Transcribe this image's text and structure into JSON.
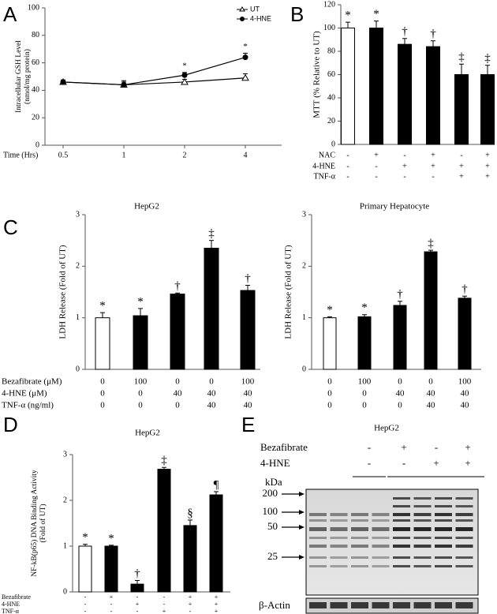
{
  "chart_data": [
    {
      "type": "line",
      "panel": "A",
      "ylabel": [
        "Intracellular GSH Level",
        "(nmol/mg protein)"
      ],
      "xlabel": "Time (Hrs)",
      "categories": [
        "0.5",
        "1",
        "2",
        "4"
      ],
      "ylim": [
        0,
        100
      ],
      "yticks": [
        0,
        20,
        40,
        60,
        80,
        100
      ],
      "series": [
        {
          "name": "UT",
          "color": "#000000",
          "marker": "open-triangle",
          "values": [
            46,
            44,
            46,
            49
          ],
          "errors": [
            1.5,
            3,
            2,
            3
          ],
          "annotations": [
            null,
            null,
            null,
            null
          ]
        },
        {
          "name": "4-HNE",
          "color": "#000000",
          "marker": "filled-circle",
          "values": [
            46,
            44,
            51,
            64
          ],
          "errors": [
            1.5,
            2,
            2,
            3
          ],
          "annotations": [
            null,
            null,
            "*",
            "*"
          ]
        }
      ]
    },
    {
      "type": "bar",
      "panel": "B",
      "ylabel": "MTT (%  Relative to UT)",
      "ylim": [
        0,
        120
      ],
      "yticks": [
        0,
        20,
        40,
        60,
        80,
        100,
        120
      ],
      "values": [
        100,
        100,
        86,
        84,
        60,
        60
      ],
      "errors": [
        5,
        6,
        5,
        5,
        9,
        8
      ],
      "annotations": [
        "*",
        "*",
        "†",
        "†",
        "‡",
        "‡"
      ],
      "colors": [
        "#ffffff",
        "#000000",
        "#000000",
        "#000000",
        "#000000",
        "#000000"
      ],
      "conditions": [
        {
          "name": "NAC",
          "values": [
            "-",
            "+",
            "-",
            "+",
            "-",
            "+"
          ]
        },
        {
          "name": "4-HNE",
          "values": [
            "-",
            "-",
            "+",
            "+",
            "+",
            "+"
          ]
        },
        {
          "name": "TNF-α",
          "values": [
            "-",
            "-",
            "-",
            "-",
            "+",
            "+"
          ]
        }
      ]
    },
    {
      "type": "bar",
      "panel": "C",
      "title": "HepG2",
      "ylabel": "LDH Release (Fold of UT)",
      "ylim": [
        0,
        3
      ],
      "yticks": [
        0,
        1,
        2,
        3
      ],
      "values": [
        1.0,
        1.04,
        1.46,
        2.35,
        1.53
      ],
      "errors": [
        0.1,
        0.14,
        0.02,
        0.15,
        0.1
      ],
      "annotations": [
        "*",
        "*",
        "†",
        "‡",
        "†"
      ],
      "colors": [
        "#ffffff",
        "#000000",
        "#000000",
        "#000000",
        "#000000"
      ],
      "conditions": [
        {
          "name": "Bezafibrate (μM)",
          "values": [
            "0",
            "100",
            "0",
            "0",
            "100"
          ]
        },
        {
          "name": "4-HNE (μM)",
          "values": [
            "0",
            "0",
            "40",
            "40",
            "40"
          ]
        },
        {
          "name": "TNF-α (ng/ml)",
          "values": [
            "0",
            "0",
            "0",
            "40",
            "40"
          ]
        }
      ]
    },
    {
      "type": "bar",
      "title": "Primary Hepatocyte",
      "ylabel": "LDH Release (Fold of UT)",
      "ylim": [
        0,
        3
      ],
      "yticks": [
        0,
        1,
        2,
        3
      ],
      "values": [
        1.0,
        1.02,
        1.24,
        2.28,
        1.38
      ],
      "errors": [
        0.02,
        0.04,
        0.08,
        0.03,
        0.04
      ],
      "annotations": [
        "*",
        "*",
        "†",
        "‡",
        "†"
      ],
      "colors": [
        "#ffffff",
        "#000000",
        "#000000",
        "#000000",
        "#000000"
      ],
      "conditions": [
        {
          "values": [
            "0",
            "100",
            "0",
            "0",
            "100"
          ]
        },
        {
          "values": [
            "0",
            "0",
            "40",
            "40",
            "40"
          ]
        },
        {
          "values": [
            "0",
            "0",
            "0",
            "40",
            "40"
          ]
        }
      ]
    },
    {
      "type": "bar",
      "panel": "D",
      "title": "HepG2",
      "ylabel": [
        "NF-kB(p65) DNA Binding Activity",
        "(Fold of UT)"
      ],
      "ylim": [
        0,
        3
      ],
      "yticks": [
        0,
        1,
        2,
        3
      ],
      "values": [
        1.0,
        1.0,
        0.17,
        2.68,
        1.45,
        2.12
      ],
      "errors": [
        0.04,
        0.02,
        0.08,
        0.04,
        0.12,
        0.07
      ],
      "annotations": [
        "*",
        "*",
        "†",
        "‡",
        "§",
        "¶"
      ],
      "colors": [
        "#ffffff",
        "#000000",
        "#000000",
        "#000000",
        "#000000",
        "#000000"
      ],
      "conditions": [
        {
          "name": "Bezafibrate",
          "values": [
            "-",
            "+",
            "-",
            "-",
            "+",
            "+"
          ]
        },
        {
          "name": "4-HNE",
          "values": [
            "-",
            "-",
            "+",
            "-",
            "+",
            "+"
          ]
        },
        {
          "name": "TNF-α",
          "values": [
            "-",
            "-",
            "-",
            "+",
            "-",
            "+"
          ]
        }
      ]
    },
    {
      "type": "blot",
      "panel": "E",
      "title": "HepG2",
      "conditions": [
        {
          "name": "Bezafibrate",
          "values": [
            "-",
            "+",
            "-",
            "+"
          ]
        },
        {
          "name": "4-HNE",
          "values": [
            "-",
            "-",
            "+",
            "+"
          ]
        }
      ],
      "marker_unit": "kDa",
      "markers": [
        "200",
        "100",
        "50",
        "25"
      ],
      "loading_control": "β-Actin"
    }
  ]
}
